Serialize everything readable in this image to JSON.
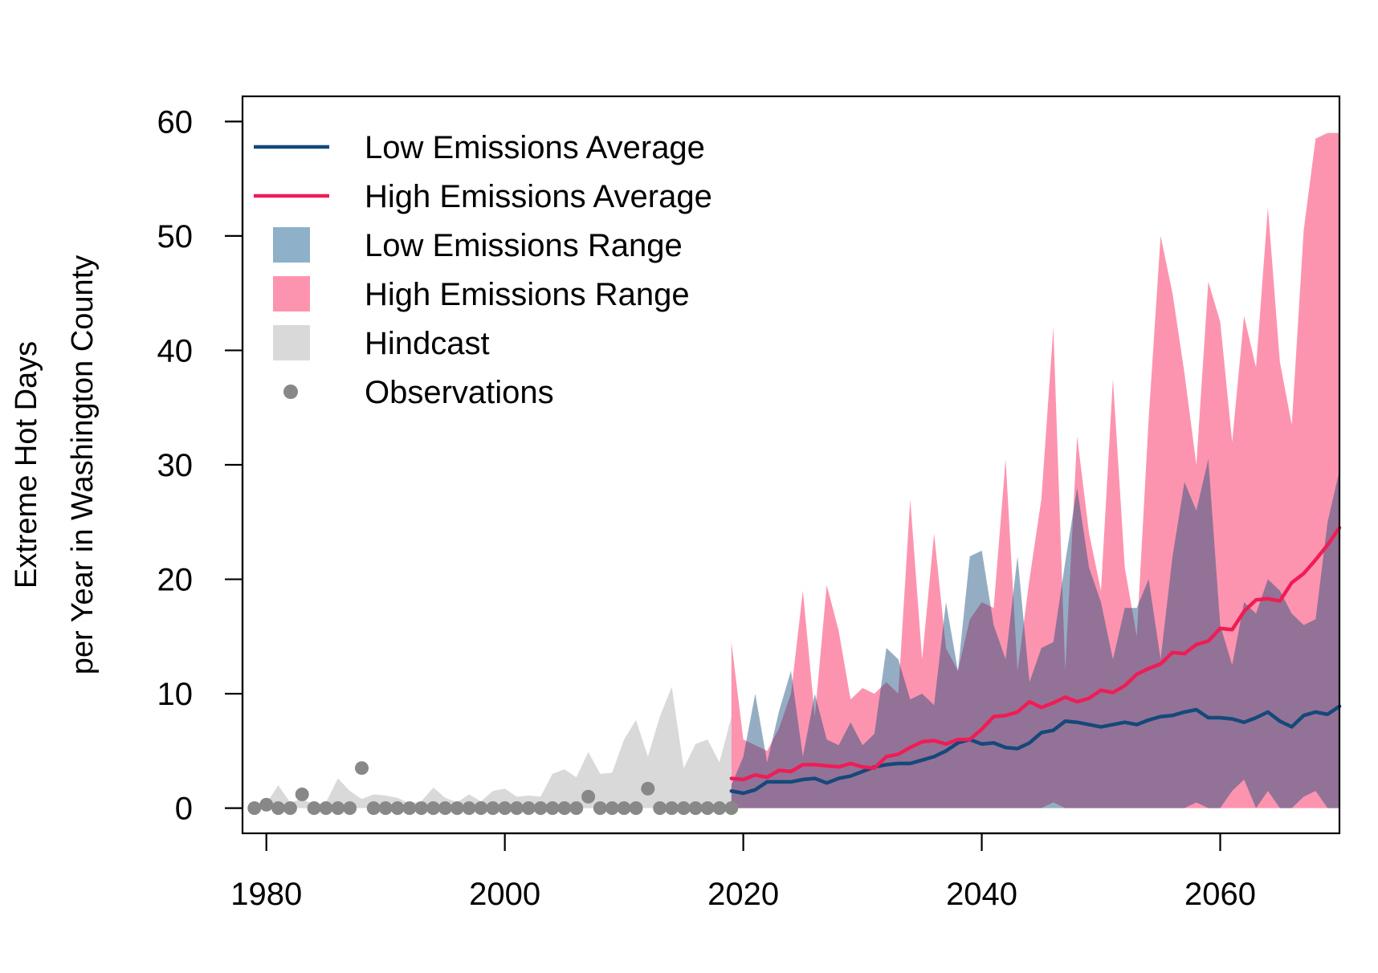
{
  "chart_data": {
    "type": "area",
    "title": "",
    "xlabel": "",
    "ylabel": [
      "Extreme Hot Days",
      "per Year in Washington County"
    ],
    "xlim": [
      1978,
      2070
    ],
    "ylim": [
      -2.2,
      62.2
    ],
    "xticks": [
      1980,
      2000,
      2020,
      2040,
      2060
    ],
    "yticks": [
      0,
      10,
      20,
      30,
      40,
      50,
      60
    ],
    "grid": false,
    "legend_position": "top-left",
    "colors": {
      "low_avg": "#14497a",
      "high_avg": "#f01c55",
      "low_range": "#8eb0c8",
      "high_range": "#fc94b0",
      "hindcast": "#d9d9d9",
      "observations": "#888888"
    },
    "legend": [
      {
        "label": "Low Emissions Average",
        "kind": "line",
        "key": "low_avg"
      },
      {
        "label": "High Emissions Average",
        "kind": "line",
        "key": "high_avg"
      },
      {
        "label": "Low Emissions Range",
        "kind": "patch",
        "key": "low_range"
      },
      {
        "label": "High Emissions Range",
        "kind": "patch",
        "key": "high_range"
      },
      {
        "label": "Hindcast",
        "kind": "patch",
        "key": "hindcast"
      },
      {
        "label": "Observations",
        "kind": "point",
        "key": "observations"
      }
    ],
    "observations": {
      "x": [
        1979,
        1980,
        1981,
        1982,
        1983,
        1984,
        1985,
        1986,
        1987,
        1988,
        1989,
        1990,
        1991,
        1992,
        1993,
        1994,
        1995,
        1996,
        1997,
        1998,
        1999,
        2000,
        2001,
        2002,
        2003,
        2004,
        2005,
        2006,
        2007,
        2008,
        2009,
        2010,
        2011,
        2012,
        2013,
        2014,
        2015,
        2016,
        2017,
        2018,
        2019
      ],
      "y": [
        0,
        0.3,
        0,
        0,
        1.2,
        0,
        0,
        0,
        0,
        3.5,
        0,
        0,
        0,
        0,
        0,
        0,
        0,
        0,
        0,
        0,
        0,
        0,
        0,
        0,
        0,
        0,
        0,
        0,
        1.0,
        0,
        0,
        0,
        0,
        1.7,
        0,
        0,
        0,
        0,
        0,
        0,
        0
      ]
    },
    "hindcast": {
      "x": [
        1979,
        1980,
        1981,
        1982,
        1983,
        1984,
        1985,
        1986,
        1987,
        1988,
        1989,
        1990,
        1991,
        1992,
        1993,
        1994,
        1995,
        1996,
        1997,
        1998,
        1999,
        2000,
        2001,
        2002,
        2003,
        2004,
        2005,
        2006,
        2007,
        2008,
        2009,
        2010,
        2011,
        2012,
        2013,
        2014,
        2015,
        2016,
        2017,
        2018,
        2019
      ],
      "ymin": [
        0,
        0,
        0,
        0,
        0,
        0,
        0,
        0,
        0,
        0,
        0,
        0,
        0,
        0,
        0,
        0,
        0,
        0,
        0,
        0,
        0,
        0,
        0,
        0,
        0,
        0,
        0,
        0,
        0,
        0,
        0,
        0,
        0,
        0,
        0,
        0,
        0,
        0,
        0,
        0,
        0
      ],
      "ymax": [
        0,
        0.4,
        2.0,
        0.5,
        0.8,
        0.3,
        0.5,
        2.6,
        1.5,
        0.8,
        1.2,
        1.1,
        0.9,
        0.4,
        0.6,
        1.8,
        0.9,
        0.5,
        1.2,
        0.6,
        1.5,
        1.7,
        1.0,
        1.1,
        1.0,
        3.0,
        3.4,
        2.7,
        4.9,
        3.0,
        3.1,
        6.0,
        7.7,
        4.5,
        8.0,
        10.6,
        3.5,
        5.6,
        6.0,
        4.0,
        8.0
      ]
    },
    "x": [
      2019,
      2020,
      2021,
      2022,
      2023,
      2024,
      2025,
      2026,
      2027,
      2028,
      2029,
      2030,
      2031,
      2032,
      2033,
      2034,
      2035,
      2036,
      2037,
      2038,
      2039,
      2040,
      2041,
      2042,
      2043,
      2044,
      2045,
      2046,
      2047,
      2048,
      2049,
      2050,
      2051,
      2052,
      2053,
      2054,
      2055,
      2056,
      2057,
      2058,
      2059,
      2060,
      2061,
      2062,
      2063,
      2064,
      2065,
      2066,
      2067,
      2068,
      2069,
      2070
    ],
    "series": [
      {
        "name": "Low Emissions Range",
        "kind": "range",
        "color_key": "low_range",
        "ymin": [
          0,
          0,
          0,
          0,
          0,
          0,
          0,
          0,
          0,
          0,
          0,
          0,
          0,
          0,
          0,
          0,
          0,
          0,
          0,
          0,
          0,
          0,
          0,
          0,
          0,
          0,
          0,
          0,
          0,
          0,
          0,
          0,
          0,
          0,
          0,
          0,
          0,
          0,
          0,
          0.5,
          0,
          0,
          1.5,
          2.5,
          0,
          1.5,
          0,
          0,
          1.0,
          1.5,
          0,
          0
        ],
        "ymax": [
          2.0,
          4.5,
          10.0,
          4.0,
          8.5,
          12.0,
          4.5,
          10.0,
          6.0,
          5.5,
          7.5,
          5.5,
          6.5,
          14.0,
          13.0,
          9.5,
          10.0,
          9.0,
          18.0,
          12.0,
          22.0,
          22.5,
          16.0,
          13.0,
          22.0,
          11.0,
          14.0,
          14.5,
          21.5,
          28.0,
          21.0,
          18.0,
          13.0,
          17.5,
          17.5,
          20.0,
          13.0,
          22.0,
          28.5,
          26.0,
          30.5,
          16.0,
          12.5,
          18.0,
          17.0,
          20.0,
          19.0,
          17.0,
          16.0,
          16.5,
          25.0,
          29.5
        ]
      },
      {
        "name": "High Emissions Range",
        "kind": "range",
        "color_key": "high_range",
        "ymin": [
          0,
          0,
          0,
          0,
          0,
          0,
          0,
          0,
          0,
          0,
          0,
          0,
          0,
          0,
          0,
          0,
          0,
          0,
          0,
          0,
          0,
          0,
          0,
          0,
          0,
          0,
          0,
          0.5,
          0,
          0,
          0,
          0,
          0,
          0,
          0,
          0,
          0,
          0,
          0,
          0,
          0,
          0,
          0,
          0,
          0,
          0,
          0,
          0,
          0,
          0,
          0,
          0
        ],
        "ymax": [
          14.5,
          6.0,
          5.5,
          5.0,
          7.0,
          10.0,
          19.0,
          8.0,
          19.5,
          15.5,
          9.5,
          10.5,
          10.0,
          11.0,
          10.0,
          27.0,
          13.0,
          24.0,
          14.0,
          12.0,
          16.5,
          18.0,
          17.5,
          30.5,
          12.0,
          20.0,
          27.0,
          42.0,
          12.0,
          32.5,
          24.0,
          19.0,
          37.5,
          21.0,
          15.0,
          34.0,
          50.0,
          45.0,
          38.0,
          30.0,
          46.0,
          42.5,
          32.0,
          43.0,
          38.5,
          52.5,
          39.0,
          33.5,
          50.5,
          58.5,
          59.0,
          59.0
        ]
      },
      {
        "name": "Low Emissions Average",
        "kind": "line",
        "color_key": "low_avg",
        "values": [
          1.5,
          1.3,
          1.6,
          2.3,
          2.3,
          2.3,
          2.5,
          2.6,
          2.2,
          2.6,
          2.8,
          3.2,
          3.6,
          3.8,
          3.9,
          3.9,
          4.2,
          4.5,
          5.0,
          5.7,
          6.0,
          5.6,
          5.7,
          5.3,
          5.2,
          5.7,
          6.6,
          6.8,
          7.6,
          7.5,
          7.3,
          7.1,
          7.3,
          7.5,
          7.3,
          7.7,
          8.0,
          8.1,
          8.4,
          8.6,
          7.9,
          7.9,
          7.8,
          7.5,
          7.9,
          8.4,
          7.6,
          7.1,
          8.1,
          8.4,
          8.2,
          8.9
        ]
      },
      {
        "name": "High Emissions Average",
        "kind": "line",
        "color_key": "high_avg",
        "values": [
          2.6,
          2.5,
          2.9,
          2.7,
          3.3,
          3.2,
          3.8,
          3.8,
          3.7,
          3.6,
          3.9,
          3.6,
          3.5,
          4.5,
          4.7,
          5.3,
          5.8,
          5.9,
          5.6,
          6.0,
          6.0,
          6.9,
          8.0,
          8.1,
          8.4,
          9.3,
          8.8,
          9.2,
          9.7,
          9.3,
          9.6,
          10.3,
          10.1,
          10.7,
          11.7,
          12.2,
          12.6,
          13.6,
          13.5,
          14.3,
          14.6,
          15.7,
          15.6,
          17.2,
          18.2,
          18.3,
          18.1,
          19.7,
          20.5,
          21.7,
          23.0,
          24.5
        ]
      }
    ]
  }
}
